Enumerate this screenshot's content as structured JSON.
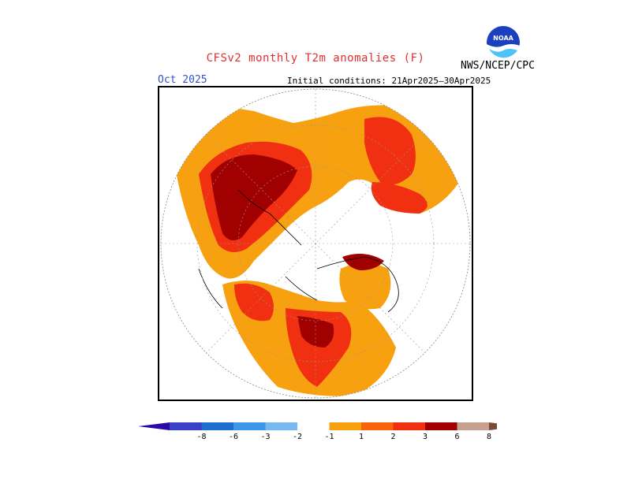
{
  "header": {
    "title": "CFSv2 monthly T2m anomalies (F)",
    "agency": "NWS/NCEP/CPC",
    "period": "Oct 2025",
    "initial_conditions": "Initial conditions: 21Apr2025–30Apr2025",
    "logo_text": "NOAA"
  },
  "colors": {
    "title": "#e03030",
    "period": "#3050d0"
  },
  "colorbar": {
    "tick_labels": [
      "-8",
      "-6",
      "-3",
      "-2",
      "-1",
      "1",
      "2",
      "3",
      "6",
      "8"
    ],
    "bins": [
      {
        "color": "#2a0aa8"
      },
      {
        "color": "#3a40c8"
      },
      {
        "color": "#1e6ed0"
      },
      {
        "color": "#3c96e8"
      },
      {
        "color": "#78b8f0"
      },
      {
        "color": "#ffffff"
      },
      {
        "color": "#f7a010"
      },
      {
        "color": "#f7640a"
      },
      {
        "color": "#f03010"
      },
      {
        "color": "#a00000"
      },
      {
        "color": "#c8a090"
      },
      {
        "color": "#7a4a38"
      }
    ]
  }
}
